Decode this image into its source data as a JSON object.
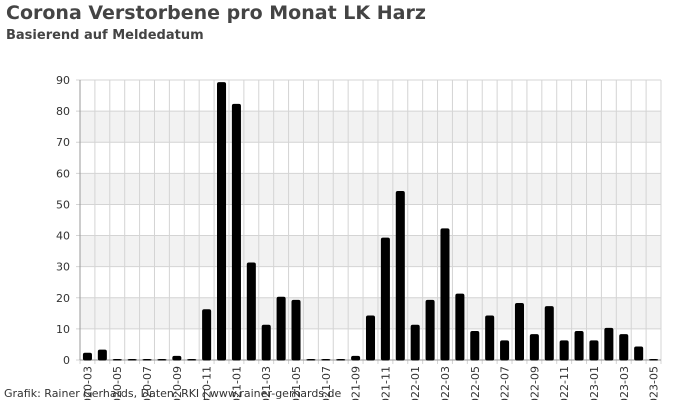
{
  "chart_data": {
    "type": "bar",
    "title": "Corona Verstorbene pro Monat LK Harz",
    "subtitle": "Basierend auf Meldedatum",
    "source": "Grafik: Rainer Gerhards, Daten: RKI | www.rainer-gerhards.de",
    "categories": [
      "2020-03",
      null,
      "2020-05",
      null,
      "2020-07",
      null,
      "2020-09",
      null,
      "2020-11",
      null,
      "2021-01",
      null,
      "2021-03",
      null,
      "2021-05",
      null,
      "2021-07",
      null,
      "2021-09",
      null,
      "2021-11",
      null,
      "2022-01",
      null,
      "2022-03",
      null,
      "2022-05",
      null,
      "2022-07",
      null,
      "2022-09",
      null,
      "2022-11",
      null,
      "2023-01",
      null,
      "2023-03",
      null,
      "2023-05"
    ],
    "values": [
      2,
      3,
      0,
      0,
      0,
      0,
      1,
      0,
      16,
      89,
      82,
      31,
      11,
      20,
      19,
      0,
      0,
      0,
      1,
      14,
      39,
      54,
      11,
      19,
      42,
      21,
      9,
      14,
      6,
      18,
      8,
      17,
      6,
      9,
      6,
      10,
      8,
      4,
      0
    ],
    "color": "#000000",
    "ylim": [
      0,
      90
    ],
    "yticks": [
      0,
      10,
      20,
      30,
      40,
      50,
      60,
      70,
      80,
      90
    ],
    "grid": true
  }
}
